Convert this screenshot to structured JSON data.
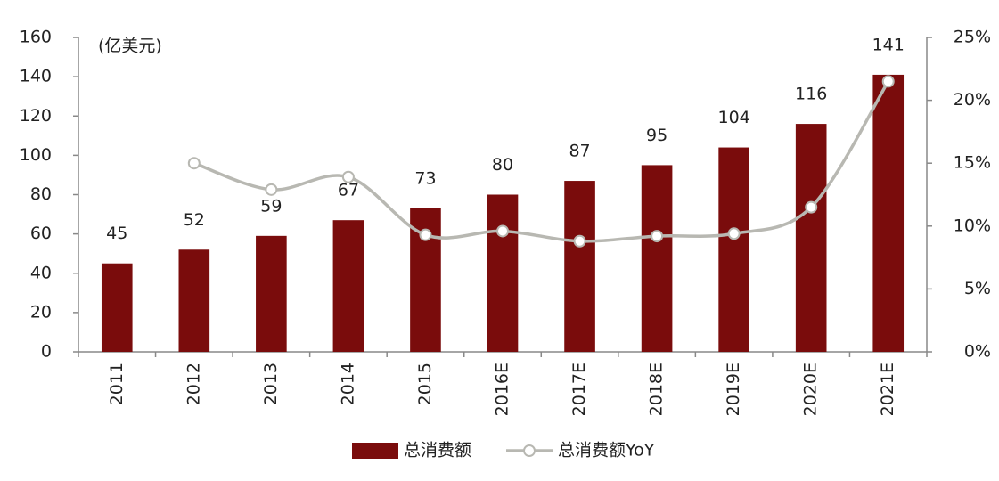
{
  "chart_data": {
    "type": "bar_line",
    "unit_label": "(亿美元)",
    "categories": [
      "2011",
      "2012",
      "2013",
      "2014",
      "2015",
      "2016E",
      "2017E",
      "2018E",
      "2019E",
      "2020E",
      "2021E"
    ],
    "series": [
      {
        "name": "总消费额",
        "type": "bar",
        "color": "#7a0c0c",
        "values": [
          45,
          52,
          59,
          67,
          73,
          80,
          87,
          95,
          104,
          116,
          141
        ]
      },
      {
        "name": "总消费额YoY",
        "type": "line",
        "axis": "y2",
        "color": "#b8b8b2",
        "values": [
          null,
          15.0,
          12.9,
          13.9,
          9.3,
          9.6,
          8.8,
          9.2,
          9.4,
          11.5,
          21.5
        ]
      }
    ],
    "ylim": [
      0,
      160
    ],
    "yticks": [
      0,
      20,
      40,
      60,
      80,
      100,
      120,
      140,
      160
    ],
    "y2lim": [
      0,
      25
    ],
    "y2ticks": [
      {
        "value": 0,
        "label": "0%"
      },
      {
        "value": 5,
        "label": "5%"
      },
      {
        "value": 10,
        "label": "10%"
      },
      {
        "value": 15,
        "label": "15%"
      },
      {
        "value": 20,
        "label": "20%"
      },
      {
        "value": 25,
        "label": "25%"
      }
    ]
  }
}
